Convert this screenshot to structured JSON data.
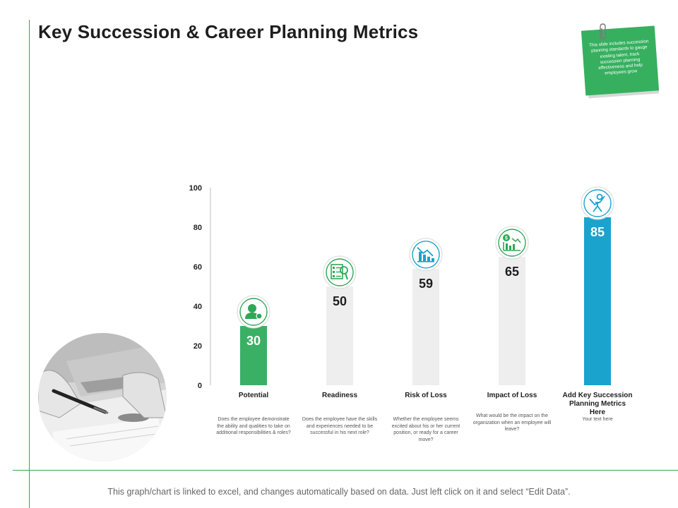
{
  "title": "Key Succession & Career Planning Metrics",
  "note": "This slide includes succession planning standards to gauge existing talent, track succession planning effectiveness and help employees grow",
  "footer": "This graph/chart is linked to excel, and changes automatically based on data. Just left click on it and select “Edit Data”.",
  "colors": {
    "green": "#2ea855",
    "blue": "#1aa3cd",
    "grey_bar": "#eeeeee"
  },
  "chart_data": {
    "type": "bar",
    "categories": [
      "Potential",
      "Readiness",
      "Risk of Loss",
      "Impact of Loss",
      "Add Key Succession Planning Metrics Here"
    ],
    "values": [
      30,
      50,
      59,
      65,
      85
    ],
    "data_labels": [
      "30",
      "50",
      "59",
      "65",
      "85"
    ],
    "bar_colors": [
      "#3ab065",
      "#eeeeee",
      "#eeeeee",
      "#eeeeee",
      "#1aa3cd"
    ],
    "icons": [
      "user-settings-icon",
      "checklist-icon",
      "falling-chart-icon",
      "finance-chart-icon",
      "stickman-icon"
    ],
    "ylim": [
      0,
      100
    ],
    "yticks": [
      "0",
      "20",
      "40",
      "60",
      "80",
      "100"
    ],
    "grid": false,
    "descriptions": [
      "Does the employee demonstrate the ability and qualities to take on additional responsibilities & roles?",
      "Does the employee have the skills and experiences needed to be successful in his next role?",
      "Whether the employee seems excited about his or her current position, or ready for a career move?",
      "What would be the impact on the organization when an employee will leave?",
      "Your text here"
    ]
  }
}
